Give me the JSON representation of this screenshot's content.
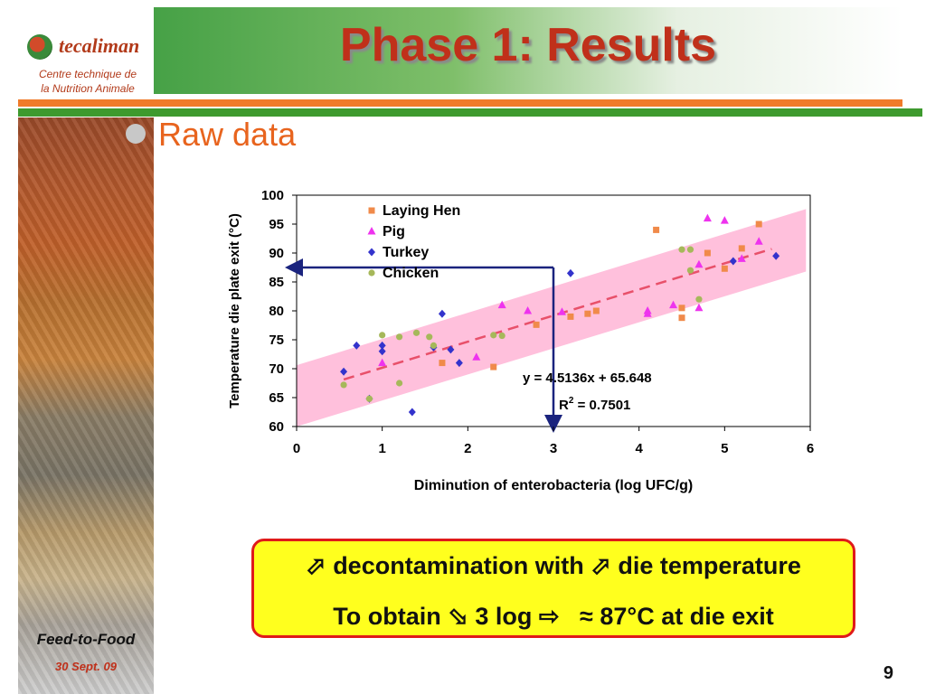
{
  "header": {
    "logo_name": "tecaliman",
    "logo_subtitle_1": "Centre technique de",
    "logo_subtitle_2": "la Nutrition Animale",
    "title": "Phase 1: Results"
  },
  "bullet": {
    "text": "Raw data"
  },
  "colors": {
    "laying_hen": "#f08a4a",
    "pig": "#ee33ee",
    "turkey": "#3333cc",
    "chicken": "#a6b85a",
    "band": "#ffc0dc",
    "trendline": "#e8506a",
    "arrow": "#1a237e",
    "accent_orange": "#e8641e",
    "title_red": "#c0301a"
  },
  "chart_data": {
    "type": "scatter",
    "xlabel": "Diminution of enterobacteria (log UFC/g)",
    "ylabel": "Temperature die plate exit (°C)",
    "xlim": [
      0,
      6
    ],
    "ylim": [
      60,
      100
    ],
    "xticks": [
      "0",
      "1",
      "2",
      "3",
      "4",
      "5",
      "6"
    ],
    "yticks": [
      "60",
      "65",
      "70",
      "75",
      "80",
      "85",
      "90",
      "95",
      "100"
    ],
    "legend_position": "top-left-inside",
    "grid": false,
    "series": [
      {
        "name": "Laying Hen",
        "marker": "square",
        "x": [
          1.7,
          2.3,
          2.8,
          3.2,
          3.4,
          3.5,
          4.2,
          4.5,
          4.5,
          4.8,
          5.0,
          5.2,
          5.4
        ],
        "y": [
          71.0,
          70.3,
          77.6,
          79.0,
          79.5,
          80.0,
          94.0,
          78.8,
          80.5,
          90.0,
          87.3,
          90.8,
          95.0
        ]
      },
      {
        "name": "Pig",
        "marker": "triangle",
        "x": [
          1.0,
          2.1,
          2.4,
          2.7,
          3.1,
          4.1,
          4.1,
          4.4,
          4.7,
          4.7,
          4.8,
          5.0,
          5.2,
          5.4
        ],
        "y": [
          71.0,
          72.0,
          81.0,
          80.0,
          79.8,
          79.5,
          80.0,
          81.0,
          80.5,
          88.0,
          96.0,
          95.6,
          89.0,
          92.0
        ]
      },
      {
        "name": "Turkey",
        "marker": "diamond",
        "x": [
          0.55,
          0.7,
          0.85,
          1.0,
          1.0,
          1.35,
          1.6,
          1.7,
          1.8,
          1.9,
          3.2,
          5.1,
          5.6
        ],
        "y": [
          69.5,
          74.0,
          64.8,
          74.0,
          73.0,
          62.5,
          73.7,
          79.5,
          73.3,
          71.0,
          86.5,
          88.6,
          89.5
        ]
      },
      {
        "name": "Chicken",
        "marker": "circle",
        "x": [
          0.55,
          0.85,
          1.0,
          1.2,
          1.2,
          1.4,
          1.55,
          1.6,
          2.3,
          2.4,
          4.5,
          4.6,
          4.6,
          4.7
        ],
        "y": [
          67.2,
          64.8,
          75.8,
          67.5,
          75.5,
          76.2,
          75.5,
          74.0,
          75.8,
          75.7,
          90.6,
          90.6,
          87.0,
          82.0
        ]
      }
    ],
    "trendline": {
      "equation": "y = 4.5136x + 65.648",
      "r2_label": "R",
      "r2_sup": "2",
      "r2_value": " = 0.7501",
      "slope": 4.5136,
      "intercept": 65.648,
      "x_range": [
        0.55,
        5.55
      ]
    },
    "confidence_band": {
      "x_range": [
        0,
        5.95
      ],
      "lower_start": 60.0,
      "lower_end": 86.8,
      "upper_start": 70.6,
      "upper_end": 97.6
    },
    "reference": {
      "x": 3,
      "y": 87.5
    }
  },
  "callout": {
    "line1_text_a": "decontamination with",
    "line1_text_b": "die temperature",
    "line2_text_a": "To obtain",
    "line2_text_b": "3 log",
    "line2_text_c": "≈ 87°C at die exit",
    "arrow_up": "⬀",
    "arrow_down": "⬂",
    "arrow_right": "⇨"
  },
  "footer": {
    "event": "Feed-to-Food",
    "date": "30 Sept. 09",
    "page": "9"
  }
}
